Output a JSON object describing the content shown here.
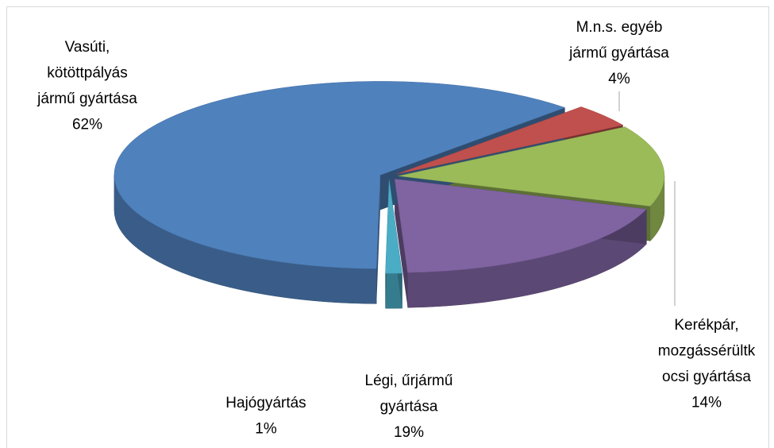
{
  "chart_data": {
    "type": "pie3d",
    "categories": [
      "M.n.s. egyéb jármű gyártása",
      "Kerékpár, mozgássérültkocsi gyártása",
      "Légi, űrjármű gyártása",
      "Hajógyártás",
      "Vasúti, kötöttpályás jármű gyártása"
    ],
    "values": [
      4,
      14,
      19,
      1,
      62
    ],
    "value_labels": [
      "4%",
      "14%",
      "19%",
      "1%",
      "62%"
    ],
    "colors": [
      "#c0504d",
      "#9bbb59",
      "#8064a2",
      "#4bacc6",
      "#4f81bd"
    ]
  }
}
